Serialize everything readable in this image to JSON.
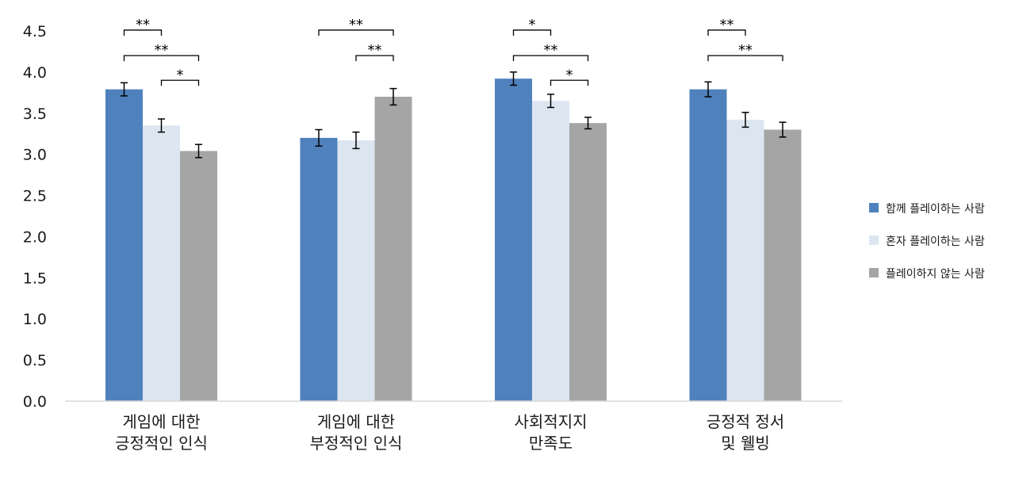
{
  "chart_data": {
    "type": "bar",
    "categories": [
      [
        "게임에 대한",
        "긍정적인 인식"
      ],
      [
        "게임에 대한",
        "부정적인 인식"
      ],
      [
        "사회적지지",
        "만족도"
      ],
      [
        "긍정적 정서",
        "및 웰빙"
      ]
    ],
    "series": [
      {
        "name": "함께 플레이하는 사람",
        "color": "#4f81bd",
        "values": [
          3.79,
          3.2,
          3.92,
          3.79
        ],
        "errors": [
          0.08,
          0.1,
          0.08,
          0.09
        ]
      },
      {
        "name": "혼자 플레이하는 사람",
        "color": "#dce6f1",
        "values": [
          3.35,
          3.17,
          3.65,
          3.42
        ],
        "errors": [
          0.08,
          0.1,
          0.08,
          0.09
        ]
      },
      {
        "name": "플레이하지 않는 사람",
        "color": "#a5a5a5",
        "values": [
          3.04,
          3.7,
          3.38,
          3.3
        ],
        "errors": [
          0.08,
          0.1,
          0.07,
          0.09
        ]
      }
    ],
    "significance": [
      {
        "category": 0,
        "from": 0,
        "to": 1,
        "label": "**",
        "level": 4.51
      },
      {
        "category": 0,
        "from": 0,
        "to": 2,
        "label": "**",
        "level": 4.2
      },
      {
        "category": 0,
        "from": 1,
        "to": 2,
        "label": "*",
        "level": 3.9
      },
      {
        "category": 1,
        "from": 0,
        "to": 2,
        "label": "**",
        "level": 4.51
      },
      {
        "category": 1,
        "from": 1,
        "to": 2,
        "label": "**",
        "level": 4.2
      },
      {
        "category": 2,
        "from": 0,
        "to": 1,
        "label": "*",
        "level": 4.51
      },
      {
        "category": 2,
        "from": 0,
        "to": 2,
        "label": "**",
        "level": 4.2
      },
      {
        "category": 2,
        "from": 1,
        "to": 2,
        "label": "*",
        "level": 3.9
      },
      {
        "category": 3,
        "from": 0,
        "to": 1,
        "label": "**",
        "level": 4.51
      },
      {
        "category": 3,
        "from": 0,
        "to": 2,
        "label": "**",
        "level": 4.2
      }
    ],
    "y_ticks": [
      "0.0",
      "0.5",
      "1.0",
      "1.5",
      "2.0",
      "2.5",
      "3.0",
      "3.5",
      "4.0",
      "4.5"
    ],
    "ylim": [
      0,
      4.5
    ],
    "grid": false,
    "legend_position": "right"
  }
}
